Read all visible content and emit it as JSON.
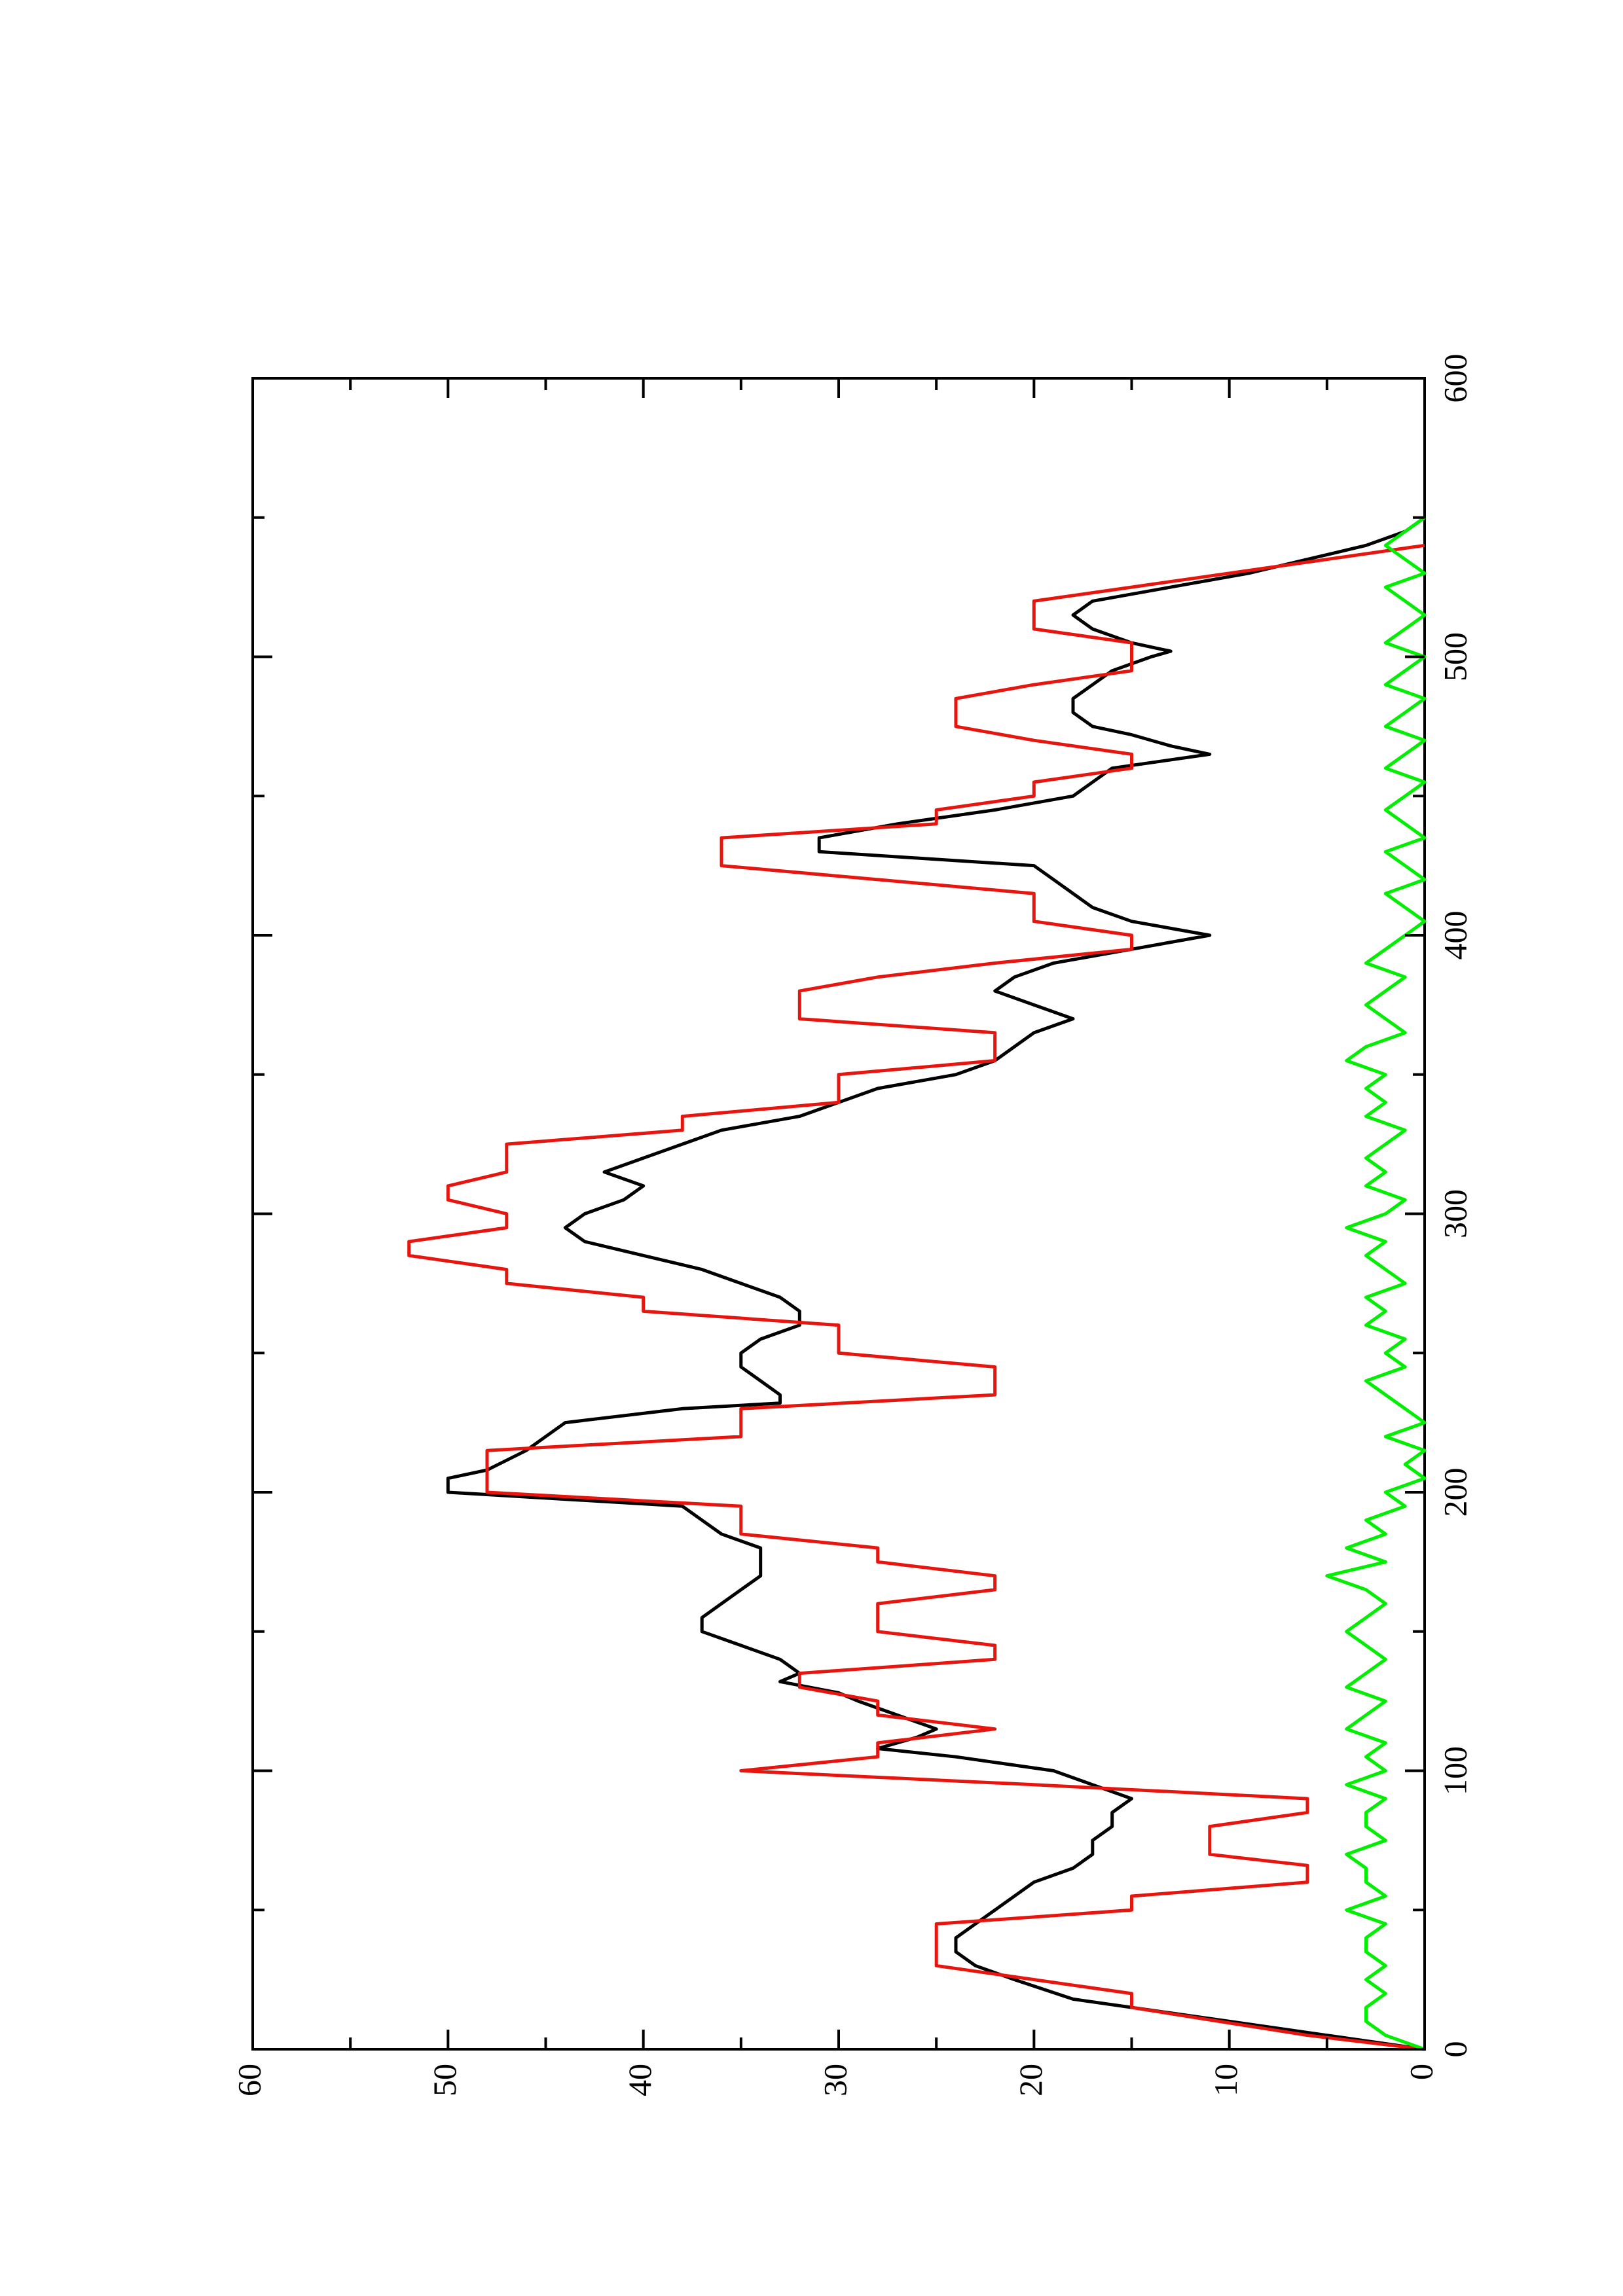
{
  "chart_data": {
    "type": "line",
    "orientation": "rotated 90 degrees counter-clockwise (x axis runs up the page on the right, y axis runs left across the bottom)",
    "title": "",
    "xlabel": "",
    "ylabel": "",
    "xlim": [
      0,
      600
    ],
    "ylim": [
      0,
      60
    ],
    "x_ticks": [
      0,
      100,
      200,
      300,
      400,
      500,
      600
    ],
    "x_tick_labels": [
      "0",
      "100",
      "200",
      "300",
      "400",
      "500",
      "600"
    ],
    "y_ticks": [
      0,
      10,
      20,
      30,
      40,
      50,
      60
    ],
    "y_tick_labels": [
      "0",
      "10",
      "20",
      "30",
      "40",
      "50",
      "60"
    ],
    "grid": false,
    "legend": "none",
    "series": [
      {
        "color": "#000000",
        "x": [
          0,
          5,
          10,
          14,
          18,
          25,
          30,
          35,
          40,
          45,
          50,
          55,
          60,
          65,
          70,
          75,
          80,
          85,
          90,
          95,
          100,
          105,
          108,
          112,
          115,
          120,
          125,
          128,
          132,
          135,
          140,
          145,
          150,
          155,
          160,
          165,
          170,
          175,
          180,
          185,
          190,
          195,
          200,
          205,
          208,
          215,
          220,
          225,
          230,
          232,
          235,
          240,
          245,
          250,
          255,
          260,
          265,
          270,
          275,
          280,
          285,
          290,
          295,
          300,
          305,
          310,
          315,
          320,
          325,
          330,
          335,
          340,
          345,
          350,
          355,
          360,
          365,
          370,
          375,
          380,
          385,
          390,
          395,
          400,
          405,
          410,
          415,
          420,
          425,
          430,
          435,
          440,
          445,
          450,
          455,
          460,
          465,
          468,
          472,
          475,
          480,
          485,
          490,
          495,
          500,
          502,
          505,
          510,
          515,
          520,
          525,
          530,
          535,
          540,
          545,
          550
        ],
        "y": [
          0,
          5,
          10,
          14,
          18,
          21,
          23,
          24,
          24,
          23,
          22,
          21,
          20,
          18,
          17,
          17,
          16,
          16,
          15,
          17,
          19,
          24,
          28,
          26,
          25,
          27,
          29,
          30,
          33,
          32,
          33,
          35,
          37,
          37,
          36,
          35,
          34,
          34,
          34,
          36,
          37,
          38,
          50,
          50,
          48,
          46,
          45,
          44,
          38,
          33,
          33,
          34,
          35,
          35,
          34,
          32,
          32,
          33,
          35,
          37,
          40,
          43,
          44,
          43,
          41,
          40,
          42,
          40,
          38,
          36,
          32,
          30,
          28,
          24,
          22,
          21,
          20,
          18,
          20,
          22,
          21,
          19,
          15,
          11,
          15,
          17,
          18,
          19,
          20,
          31,
          31,
          27,
          22,
          18,
          17,
          16,
          11,
          13,
          15,
          17,
          18,
          18,
          17,
          16,
          14,
          13,
          15,
          17,
          18,
          17,
          13,
          9,
          6,
          3,
          1,
          0
        ]
      },
      {
        "color": "#e8150e",
        "x": [
          0,
          5,
          15,
          20,
          30,
          35,
          45,
          50,
          55,
          60,
          66,
          70,
          75,
          80,
          85,
          90,
          95,
          100,
          105,
          110,
          115,
          120,
          125,
          130,
          135,
          140,
          145,
          150,
          155,
          160,
          165,
          170,
          175,
          180,
          185,
          190,
          195,
          200,
          210,
          215,
          220,
          225,
          230,
          235,
          240,
          245,
          250,
          255,
          260,
          265,
          270,
          275,
          280,
          285,
          290,
          295,
          300,
          305,
          310,
          315,
          320,
          325,
          330,
          335,
          340,
          345,
          350,
          355,
          360,
          365,
          370,
          375,
          380,
          385,
          390,
          395,
          400,
          405,
          410,
          415,
          420,
          425,
          430,
          435,
          440,
          445,
          450,
          455,
          460,
          465,
          470,
          475,
          480,
          485,
          490,
          495,
          500,
          505,
          510,
          515,
          520,
          525,
          530,
          535,
          540
        ],
        "y": [
          0,
          6,
          15,
          15,
          25,
          25,
          25,
          15,
          15,
          6,
          6,
          11,
          11,
          11,
          6,
          6,
          20,
          35,
          28,
          28,
          22,
          28,
          28,
          32,
          32,
          22,
          22,
          28,
          28,
          28,
          22,
          22,
          28,
          28,
          35,
          35,
          35,
          48,
          48,
          48,
          35,
          35,
          35,
          22,
          22,
          22,
          30,
          30,
          30,
          40,
          40,
          47,
          47,
          52,
          52,
          47,
          47,
          50,
          50,
          47,
          47,
          47,
          38,
          38,
          30,
          30,
          30,
          22,
          22,
          22,
          32,
          32,
          32,
          28,
          22,
          15,
          15,
          20,
          20,
          20,
          28,
          36,
          36,
          36,
          25,
          25,
          20,
          20,
          15,
          15,
          20,
          24,
          24,
          24,
          20,
          15,
          15,
          15,
          20,
          20,
          20,
          15,
          10,
          5,
          0
        ]
      },
      {
        "color": "#00ee00",
        "x": [
          0,
          5,
          10,
          15,
          20,
          25,
          30,
          35,
          40,
          45,
          50,
          55,
          60,
          65,
          70,
          75,
          80,
          85,
          90,
          95,
          100,
          105,
          110,
          115,
          120,
          125,
          130,
          135,
          140,
          145,
          150,
          155,
          160,
          165,
          170,
          175,
          180,
          185,
          190,
          195,
          200,
          205,
          210,
          215,
          220,
          225,
          230,
          235,
          240,
          245,
          250,
          255,
          260,
          265,
          270,
          275,
          280,
          285,
          290,
          295,
          300,
          305,
          310,
          315,
          320,
          325,
          330,
          335,
          340,
          345,
          350,
          355,
          360,
          365,
          370,
          375,
          380,
          385,
          390,
          395,
          400,
          405,
          410,
          415,
          420,
          425,
          430,
          435,
          440,
          445,
          450,
          455,
          460,
          465,
          470,
          475,
          480,
          485,
          490,
          495,
          500,
          505,
          510,
          515,
          520,
          525,
          530,
          535,
          540,
          545,
          550
        ],
        "y": [
          0,
          2,
          3,
          3,
          2,
          3,
          2,
          3,
          3,
          2,
          4,
          2,
          3,
          3,
          4,
          2,
          3,
          3,
          2,
          4,
          2,
          3,
          2,
          4,
          3,
          2,
          4,
          3,
          2,
          3,
          4,
          3,
          2,
          3,
          5,
          2,
          4,
          2,
          3,
          1,
          2,
          0,
          1,
          0,
          2,
          0,
          1,
          2,
          3,
          1,
          2,
          1,
          3,
          2,
          3,
          1,
          2,
          3,
          2,
          4,
          2,
          1,
          3,
          2,
          3,
          2,
          1,
          3,
          2,
          3,
          2,
          4,
          3,
          1,
          2,
          3,
          2,
          1,
          3,
          2,
          1,
          0,
          1,
          2,
          0,
          1,
          2,
          0,
          1,
          2,
          1,
          0,
          2,
          1,
          0,
          2,
          1,
          0,
          2,
          1,
          0,
          2,
          1,
          0,
          1,
          2,
          0,
          1,
          2,
          1,
          0
        ]
      }
    ]
  }
}
